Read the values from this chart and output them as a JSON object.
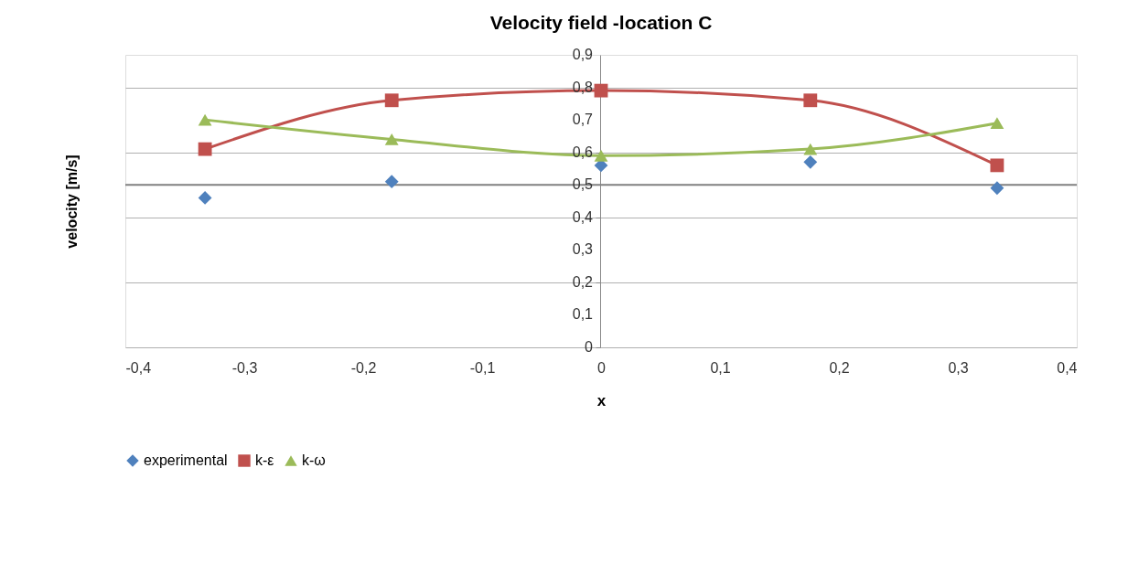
{
  "chart_data": {
    "type": "line",
    "title": "Velocity field -location C",
    "xlabel": "x",
    "ylabel": "velocity [m/s]",
    "xlim": [
      -0.4,
      0.4
    ],
    "xticks": [
      {
        "value": -0.4,
        "label": "-0,4"
      },
      {
        "value": -0.3,
        "label": "-0,3"
      },
      {
        "value": -0.2,
        "label": "-0,2"
      },
      {
        "value": -0.1,
        "label": "-0,1"
      },
      0,
      {
        "value": 0.1,
        "label": "0,1"
      },
      {
        "value": 0.2,
        "label": "0,2"
      },
      {
        "value": 0.3,
        "label": "0,3"
      },
      {
        "value": 0.4,
        "label": "0,4"
      }
    ],
    "ylim": [
      0,
      0.9
    ],
    "yticks": [
      0,
      {
        "value": 0.1,
        "label": "0,1"
      },
      {
        "value": 0.2,
        "label": "0,2"
      },
      {
        "value": 0.3,
        "label": "0,3"
      },
      {
        "value": 0.4,
        "label": "0,4"
      },
      {
        "value": 0.5,
        "label": "0,5"
      },
      {
        "value": 0.6,
        "label": "0,6"
      },
      {
        "value": 0.7,
        "label": "0,7"
      },
      {
        "value": 0.8,
        "label": "0,8"
      },
      {
        "value": 0.9,
        "label": "0,9"
      }
    ],
    "x": [
      -0.333,
      -0.176,
      0,
      0.176,
      0.333
    ],
    "series": [
      {
        "name": "experimental",
        "type": "scatter",
        "marker": "diamond",
        "color": "#4f81bd",
        "values": [
          0.46,
          0.51,
          0.56,
          0.57,
          0.49
        ]
      },
      {
        "name": "k-ε",
        "marker": "square",
        "color": "#c0504d",
        "values": [
          0.61,
          0.76,
          0.79,
          0.76,
          0.56
        ]
      },
      {
        "name": "k-ω",
        "marker": "triangle",
        "color": "#9bbb59",
        "values": [
          0.7,
          0.64,
          0.59,
          0.61,
          0.69
        ]
      }
    ],
    "ref_lines": [
      {
        "axis": "y",
        "value": 0.5,
        "color": "#808080"
      }
    ],
    "grid": "y",
    "legend": "bottom"
  }
}
